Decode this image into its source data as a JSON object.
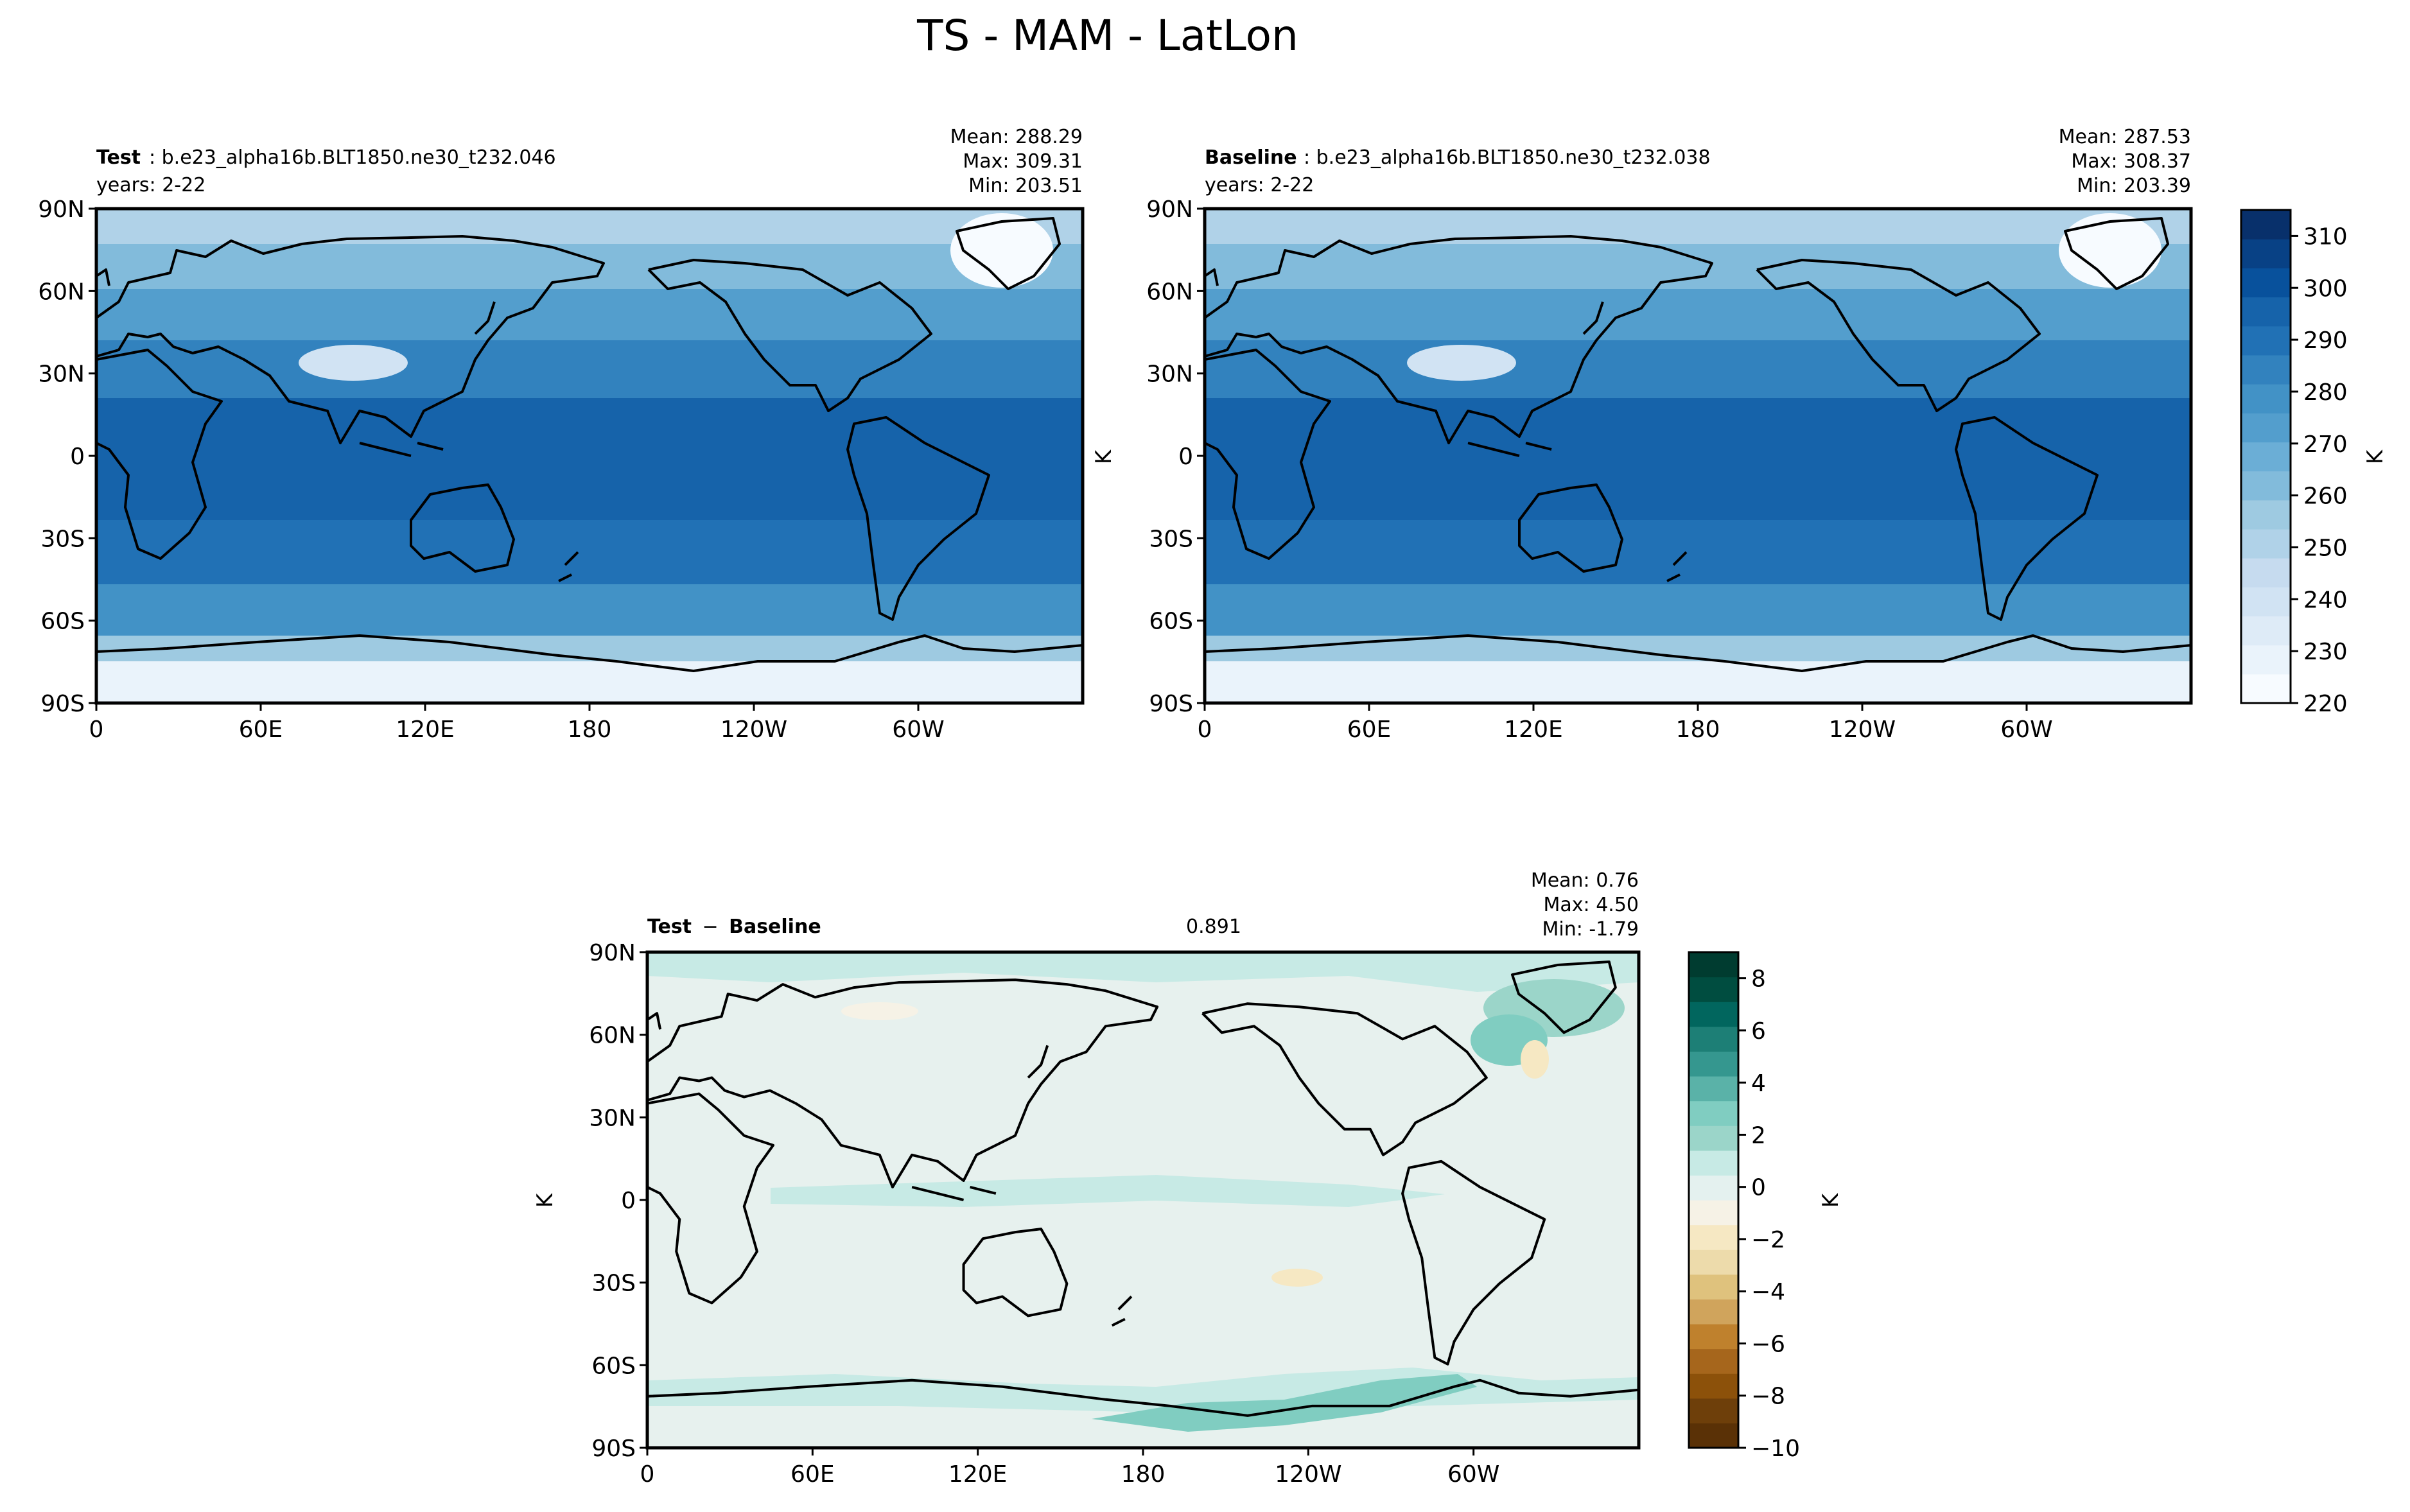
{
  "figure": {
    "suptitle": "TS - MAM - LatLon"
  },
  "colors": {
    "blues": [
      "#f7fbff",
      "#eaf3fb",
      "#deebf7",
      "#d1e3f3",
      "#c6dbef",
      "#b0d2e8",
      "#9ecae1",
      "#82bbdb",
      "#6baed6",
      "#539ecd",
      "#4292c6",
      "#3282be",
      "#2171b5",
      "#1663aa",
      "#08519c",
      "#084185",
      "#08306b"
    ],
    "diff": [
      "#5a3106",
      "#6e3f0a",
      "#8c510a",
      "#a6661c",
      "#bf812d",
      "#d0a45c",
      "#dfc27d",
      "#eddbab",
      "#f6e8c3",
      "#f6f2e6",
      "#e4f1ef",
      "#c7eae5",
      "#9bd5c9",
      "#80cdc1",
      "#5ab2a8",
      "#35978f",
      "#1d7f76",
      "#01665e",
      "#004d40",
      "#003c30"
    ],
    "coast": "#000000"
  },
  "chart_data": [
    {
      "type": "heatmap",
      "panel": "test",
      "label_bold": "Test",
      "label_rest": ": b.e23_alpha16b.BLT1850.ne30_t232.046",
      "years": "years: 2-22",
      "stats": [
        "Mean: 288.29",
        "Max: 309.31",
        "Min: 203.51"
      ],
      "xticks": [
        "0",
        "60E",
        "120E",
        "180",
        "120W",
        "60W"
      ],
      "yticks": [
        "90N",
        "60N",
        "30N",
        "0",
        "30S",
        "60S",
        "90S"
      ],
      "xlim": [
        0,
        360
      ],
      "ylim": [
        -90,
        90
      ],
      "variable": "TS",
      "units": "K",
      "mean": 288.29,
      "max": 309.31,
      "min": 203.51
    },
    {
      "type": "heatmap",
      "panel": "baseline",
      "label_bold": "Baseline",
      "label_rest": ": b.e23_alpha16b.BLT1850.ne30_t232.038",
      "years": "years: 2-22",
      "stats": [
        "Mean: 287.53",
        "Max: 308.37",
        "Min: 203.39"
      ],
      "xticks": [
        "0",
        "60E",
        "120E",
        "180",
        "120W",
        "60W"
      ],
      "yticks": [
        "90N",
        "60N",
        "30N",
        "0",
        "30S",
        "60S",
        "90S"
      ],
      "ylabel": "K",
      "xlim": [
        0,
        360
      ],
      "ylim": [
        -90,
        90
      ],
      "mean": 287.53,
      "max": 308.37,
      "min": 203.39,
      "colorbar": {
        "label": "K",
        "range": [
          220,
          315
        ],
        "ticks": [
          "310",
          "300",
          "290",
          "280",
          "270",
          "260",
          "250",
          "240",
          "230",
          "220"
        ],
        "tick_values": [
          310,
          300,
          290,
          280,
          270,
          260,
          250,
          240,
          230,
          220
        ]
      }
    },
    {
      "type": "heatmap",
      "panel": "difference",
      "label_bold": "Test",
      "label_minus": "−",
      "label_bold2": "Baseline",
      "rmse": 0.891,
      "stats": [
        "Mean:  0.76",
        "Max:  4.50",
        "Min: -1.79"
      ],
      "xticks": [
        "0",
        "60E",
        "120E",
        "180",
        "120W",
        "60W"
      ],
      "yticks": [
        "90N",
        "60N",
        "30N",
        "0",
        "30S",
        "60S",
        "90S"
      ],
      "ylabel": "K",
      "xlim": [
        0,
        360
      ],
      "ylim": [
        -90,
        90
      ],
      "mean": 0.76,
      "max": 4.5,
      "min": -1.79,
      "colorbar": {
        "label": "K",
        "range": [
          -10,
          9
        ],
        "ticks": [
          "8",
          "6",
          "4",
          "2",
          "0",
          "−2",
          "−4",
          "−6",
          "−8",
          "−10"
        ],
        "tick_values": [
          8,
          6,
          4,
          2,
          0,
          -2,
          -4,
          -6,
          -8,
          -10
        ]
      }
    }
  ]
}
